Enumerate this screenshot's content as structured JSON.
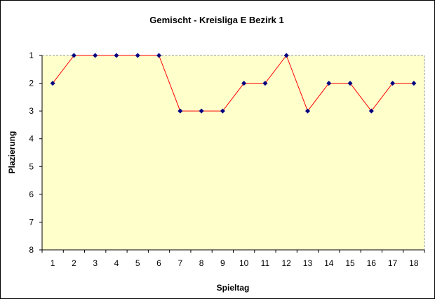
{
  "chart_data": {
    "type": "line",
    "title": "Gemischt - Kreisliga E Bezirk 1",
    "xlabel": "Spieltag",
    "ylabel": "Plazierung",
    "x": [
      1,
      2,
      3,
      4,
      5,
      6,
      7,
      8,
      9,
      10,
      11,
      12,
      13,
      14,
      15,
      16,
      17,
      18
    ],
    "x_tick_labels": [
      "1",
      "2",
      "3",
      "4",
      "5",
      "6",
      "7",
      "8",
      "9",
      "10",
      "11",
      "12",
      "13",
      "14",
      "15",
      "16",
      "17",
      "18"
    ],
    "y_tick_labels": [
      "1",
      "2",
      "3",
      "4",
      "5",
      "6",
      "7",
      "8"
    ],
    "ylim": [
      1,
      8
    ],
    "y_inverted": true,
    "grid": false,
    "legend": "none",
    "series": [
      {
        "values": [
          2,
          1,
          1,
          1,
          1,
          1,
          3,
          3,
          3,
          2,
          2,
          1,
          3,
          2,
          2,
          3,
          2,
          2
        ]
      }
    ],
    "colors": {
      "plot_background": "#ffffcc",
      "line": "#ff0000",
      "marker": "#000080",
      "top_border": "#999999"
    }
  }
}
